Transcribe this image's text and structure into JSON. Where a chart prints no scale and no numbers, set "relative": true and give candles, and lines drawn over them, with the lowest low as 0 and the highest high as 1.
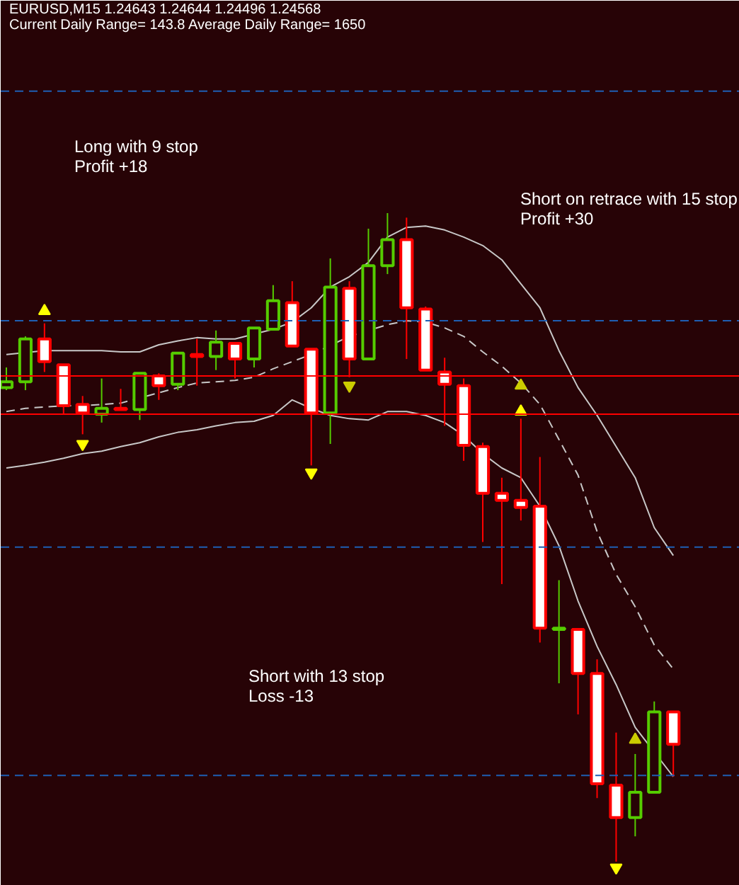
{
  "chart_data": {
    "type": "candlestick",
    "relative": true,
    "grid": false,
    "title": "EURUSD,M15  1.24643 1.24644 1.24496 1.24568",
    "subtitle": "Current Daily Range= 143.8   Average Daily Range= 1650",
    "annotations": [
      "Long with 9 stop\nProfit +18",
      "Short on retrace with 15 stop\nProfit +30",
      "Short with 13 stop\nLoss -13"
    ],
    "categories": [
      null,
      null,
      null,
      null,
      null,
      null,
      null,
      null,
      null,
      null,
      null,
      null,
      null,
      null,
      null,
      null,
      null,
      null,
      null,
      null,
      null,
      null,
      null,
      null,
      null,
      null,
      null,
      null,
      null,
      null,
      null,
      null,
      null,
      null,
      null,
      null
    ],
    "ohlc": [
      [
        0.731,
        0.762,
        0.727,
        0.74
      ],
      [
        0.74,
        0.81,
        0.727,
        0.806
      ],
      [
        0.806,
        0.83,
        0.755,
        0.771
      ],
      [
        0.766,
        0.766,
        0.69,
        0.703
      ],
      [
        0.705,
        0.718,
        0.659,
        0.692
      ],
      [
        0.69,
        0.745,
        0.677,
        0.699
      ],
      [
        0.699,
        0.729,
        0.697,
        0.697
      ],
      [
        0.697,
        0.753,
        0.681,
        0.753
      ],
      [
        0.749,
        0.753,
        0.712,
        0.734
      ],
      [
        0.736,
        0.784,
        0.727,
        0.784
      ],
      [
        0.782,
        0.806,
        0.734,
        0.779
      ],
      [
        0.779,
        0.819,
        0.758,
        0.801
      ],
      [
        0.799,
        0.799,
        0.745,
        0.775
      ],
      [
        0.775,
        0.823,
        0.762,
        0.823
      ],
      [
        0.821,
        0.889,
        0.821,
        0.865
      ],
      [
        0.862,
        0.895,
        0.795,
        0.795
      ],
      [
        0.79,
        0.79,
        0.611,
        0.692
      ],
      [
        0.692,
        0.93,
        0.644,
        0.886
      ],
      [
        0.884,
        0.895,
        0.747,
        0.775
      ],
      [
        0.775,
        0.976,
        0.775,
        0.919
      ],
      [
        0.919,
        1,
        0.906,
        0.959
      ],
      [
        0.959,
        0.993,
        0.775,
        0.854
      ],
      [
        0.852,
        0.856,
        0.758,
        0.758
      ],
      [
        0.755,
        0.777,
        0.672,
        0.736
      ],
      [
        0.734,
        0.745,
        0.618,
        0.642
      ],
      [
        0.64,
        0.646,
        0.493,
        0.568
      ],
      [
        0.568,
        0.592,
        0.428,
        0.557
      ],
      [
        0.557,
        0.683,
        0.526,
        0.546
      ],
      [
        0.548,
        0.624,
        0.338,
        0.36
      ],
      [
        0.358,
        0.434,
        0.275,
        0.36
      ],
      [
        0.358,
        0.358,
        0.227,
        0.29
      ],
      [
        0.29,
        0.312,
        0.098,
        0.12
      ],
      [
        0.118,
        0.199,
        0,
        0.068
      ],
      [
        0.068,
        0.166,
        0.039,
        0.107
      ],
      [
        0.107,
        0.247,
        0.107,
        0.231
      ],
      [
        0.231,
        0.231,
        0.131,
        0.181
      ]
    ],
    "colors": [
      "#55cc00",
      "#55cc00",
      "#ff0000",
      "#ff0000",
      "#ff0000",
      "#55cc00",
      "#ff0000",
      "#55cc00",
      "#ff0000",
      "#55cc00",
      "#ff0000",
      "#55cc00",
      "#ff0000",
      "#55cc00",
      "#55cc00",
      "#ff0000",
      "#ff0000",
      "#55cc00",
      "#ff0000",
      "#55cc00",
      "#55cc00",
      "#ff0000",
      "#ff0000",
      "#ff0000",
      "#ff0000",
      "#ff0000",
      "#ff0000",
      "#ff0000",
      "#ff0000",
      "#55cc00",
      "#ff0000",
      "#ff0000",
      "#ff0000",
      "#55cc00",
      "#55cc00",
      "#ff0000"
    ],
    "series": [
      {
        "type": "line",
        "color": "#c8c8c8",
        "line_style": "solid",
        "values": [
          0.782,
          null,
          0.788,
          0.788,
          0.788,
          0.788,
          0.786,
          0.786,
          0.797,
          0.803,
          0.808,
          0.806,
          0.806,
          null,
          0.821,
          0.832,
          0.854,
          0.886,
          0.902,
          0.924,
          0.963,
          0.978,
          0.98,
          0.974,
          0.963,
          0.95,
          0.928,
          0.891,
          0.854,
          0.788,
          0.731,
          0.688,
          0.64,
          0.592,
          0.515,
          0.472
        ]
      },
      {
        "type": "line",
        "color": "#c8c8c8",
        "line_style": "dashed",
        "values": [
          0.694,
          0.699,
          0.701,
          0.703,
          0.703,
          0.705,
          0.707,
          null,
          0.723,
          0.731,
          0.738,
          0.74,
          0.742,
          0.747,
          0.76,
          0.771,
          0.782,
          null,
          0.81,
          null,
          0.828,
          0.834,
          0.832,
          0.823,
          0.81,
          0.786,
          0.764,
          0.738,
          0.705,
          0.651,
          0.596,
          0.509,
          0.443,
          0.393,
          0.334,
          0.297
        ]
      },
      {
        "type": "line",
        "color": "#c8c8c8",
        "line_style": "solid",
        "values": [
          0.607,
          0.611,
          0.616,
          0.622,
          0.629,
          0.633,
          0.64,
          0.646,
          0.655,
          0.662,
          0.666,
          0.672,
          0.677,
          0.679,
          0.688,
          0.712,
          0.699,
          0.688,
          0.683,
          0.681,
          0.694,
          0.694,
          0.688,
          0.677,
          0.657,
          0.629,
          0.607,
          0.592,
          0.548,
          0.487,
          0.402,
          0.332,
          0.273,
          0.207,
          null,
          0.131
        ]
      },
      {
        "type": "scatter",
        "marker": "triangle",
        "color": "#ffff00",
        "values": [
          null,
          null,
          0.849,
          null,
          null,
          null,
          null,
          null,
          null,
          null,
          null,
          null,
          null,
          null,
          null,
          null,
          null,
          null,
          null,
          null,
          null,
          null,
          null,
          null,
          null,
          null,
          null,
          0.694,
          null,
          null,
          null,
          null,
          null,
          null,
          null,
          null
        ]
      },
      {
        "type": "scatter",
        "marker": "triangle",
        "color": "#ffff00",
        "values": [
          null,
          null,
          null,
          null,
          0.644,
          null,
          null,
          null,
          null,
          null,
          null,
          null,
          null,
          null,
          null,
          null,
          0.6,
          null,
          null,
          null,
          null,
          null,
          null,
          null,
          null,
          null,
          null,
          null,
          null,
          null,
          null,
          null,
          -0.009,
          null,
          null,
          null
        ]
      },
      {
        "type": "scatter",
        "marker": "triangle",
        "color": "#cccc00",
        "values": [
          null,
          null,
          null,
          null,
          null,
          null,
          null,
          null,
          null,
          null,
          null,
          null,
          null,
          null,
          null,
          null,
          null,
          null,
          0.734,
          null,
          null,
          null,
          null,
          null,
          null,
          null,
          null,
          null,
          null,
          null,
          null,
          null,
          null,
          null,
          null,
          null
        ]
      },
      {
        "type": "scatter",
        "marker": "triangle",
        "color": "#cccc00",
        "values": [
          null,
          null,
          null,
          null,
          null,
          null,
          null,
          null,
          null,
          null,
          null,
          null,
          null,
          null,
          null,
          null,
          null,
          null,
          null,
          null,
          null,
          null,
          null,
          null,
          null,
          null,
          null,
          0.734,
          null,
          null,
          null,
          null,
          null,
          0.188,
          null,
          null
        ]
      }
    ],
    "ref_lines": [
      {
        "axis": "y",
        "value": 1.188,
        "color": "#1e5fb4",
        "line_style": "dashed"
      },
      {
        "axis": "y",
        "value": 0.834,
        "color": "#1e5fb4",
        "line_style": "dashed"
      },
      {
        "axis": "y",
        "value": 0.485,
        "color": "#1e5fb4",
        "line_style": "dashed"
      },
      {
        "axis": "y",
        "value": 0.133,
        "color": "#1e5fb4",
        "line_style": "dashed"
      },
      {
        "axis": "y",
        "value": 0.749,
        "color": "#ff0000",
        "line_style": "solid"
      },
      {
        "axis": "y",
        "value": 0.69,
        "color": "#ff0000",
        "line_style": "solid"
      }
    ]
  }
}
